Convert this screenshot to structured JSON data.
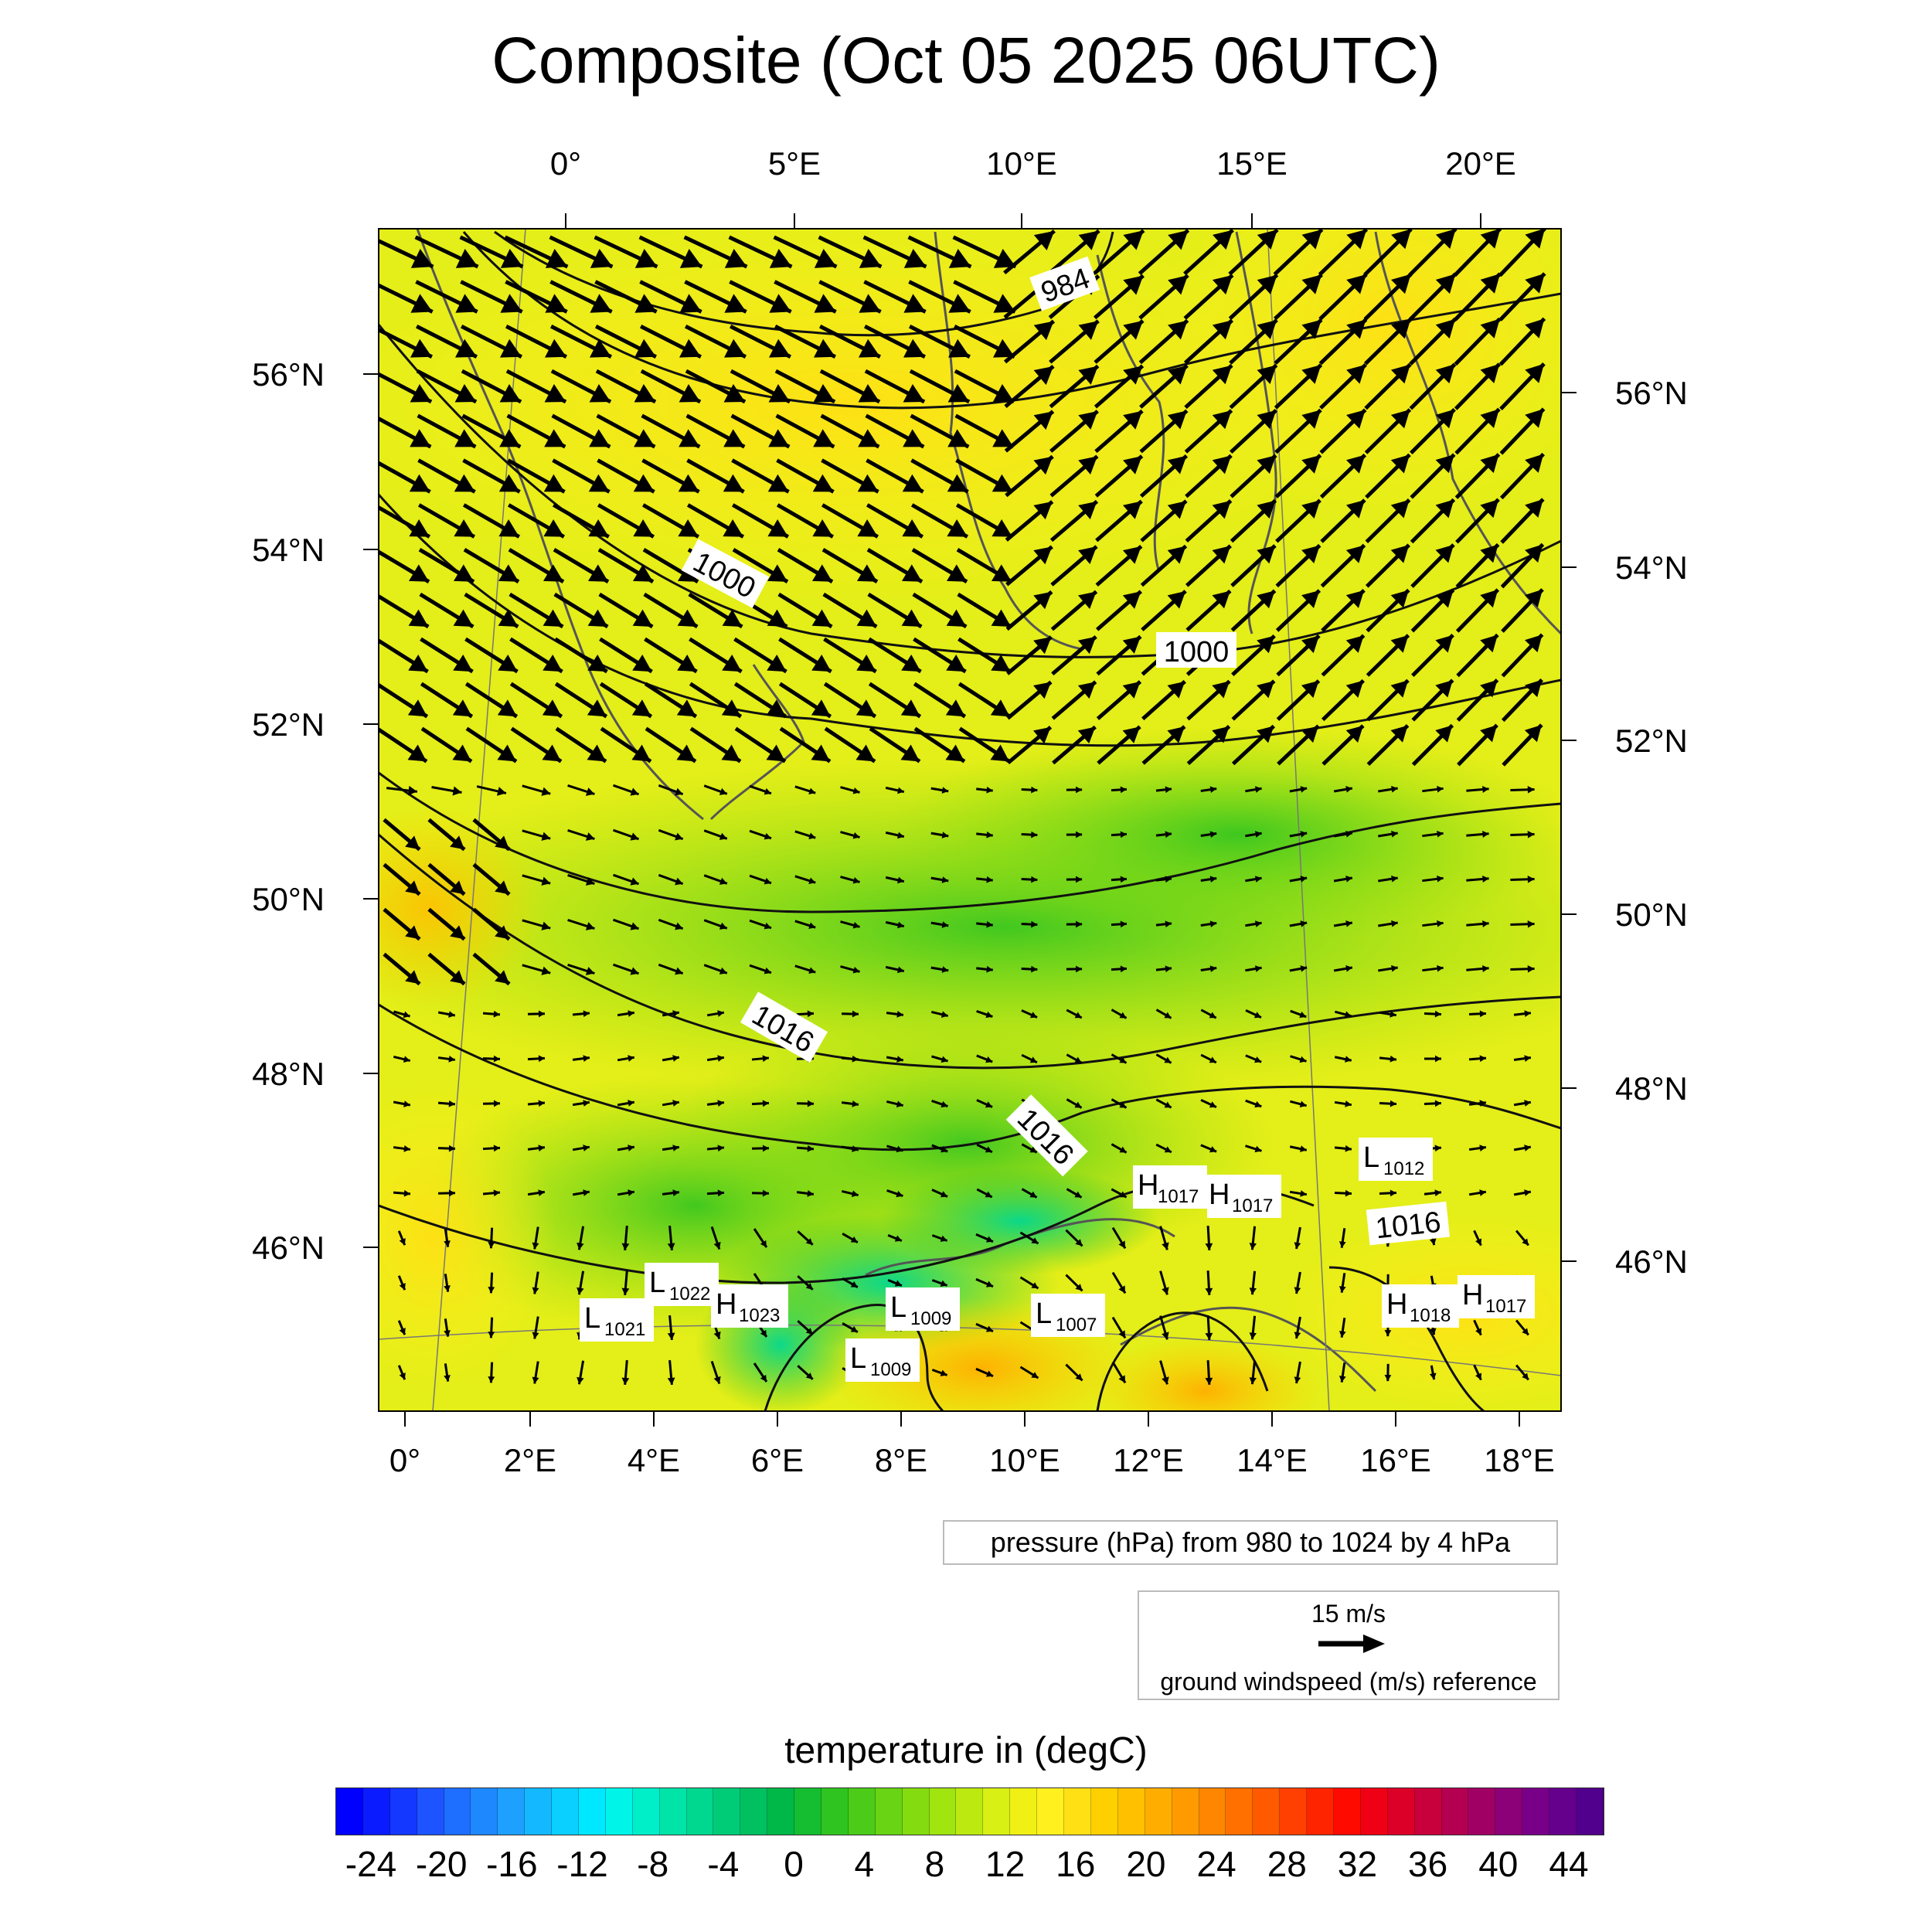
{
  "title": "Composite (Oct 05 2025 06UTC)",
  "top_lon_labels": [
    "0°",
    "5°E",
    "10°E",
    "15°E",
    "20°E"
  ],
  "bottom_lon_labels": [
    "0°",
    "2°E",
    "4°E",
    "6°E",
    "8°E",
    "10°E",
    "12°E",
    "14°E",
    "16°E",
    "18°E"
  ],
  "left_lat_labels": [
    "56°N",
    "54°N",
    "52°N",
    "50°N",
    "48°N",
    "46°N"
  ],
  "right_lat_labels": [
    "56°N",
    "54°N",
    "52°N",
    "50°N",
    "48°N",
    "46°N"
  ],
  "isobar_labels": [
    "984",
    "1000",
    "1000",
    "1016",
    "1016",
    "1016"
  ],
  "pressure_systems": [
    {
      "letter": "L",
      "value": "1012"
    },
    {
      "letter": "H",
      "value": "1017"
    },
    {
      "letter": "H",
      "value": "1017"
    },
    {
      "letter": "L",
      "value": "1022"
    },
    {
      "letter": "L",
      "value": "1021"
    },
    {
      "letter": "H",
      "value": "1023"
    },
    {
      "letter": "L",
      "value": "1009"
    },
    {
      "letter": "L",
      "value": "1009"
    },
    {
      "letter": "L",
      "value": "1007"
    },
    {
      "letter": "H",
      "value": "1018"
    },
    {
      "letter": "H",
      "value": "1017"
    }
  ],
  "pressure_legend": "pressure (hPa) from 980 to 1024 by 4 hPa",
  "wind_reference": {
    "speed": "15 m/s",
    "caption": "ground windspeed (m/s) reference"
  },
  "colorbar": {
    "title": "temperature in (degC)",
    "labels": [
      "-24",
      "-20",
      "-16",
      "-12",
      "-8",
      "-4",
      "0",
      "4",
      "8",
      "12",
      "16",
      "20",
      "24",
      "28",
      "32",
      "36",
      "40",
      "44"
    ],
    "colors": [
      "#0000ff",
      "#0a1cff",
      "#1438ff",
      "#1e54ff",
      "#1e6eff",
      "#1e88ff",
      "#1ea0ff",
      "#14b8ff",
      "#0ad0ff",
      "#00e8ff",
      "#00f5e8",
      "#00eec8",
      "#00e4a8",
      "#00d890",
      "#00cc78",
      "#00c060",
      "#00b848",
      "#14be30",
      "#30c420",
      "#4ccc18",
      "#68d414",
      "#84dc10",
      "#a0e410",
      "#bcea10",
      "#d8f014",
      "#f0f014",
      "#fff01e",
      "#ffe014",
      "#ffd000",
      "#ffc000",
      "#ffae00",
      "#ff9a00",
      "#ff8600",
      "#ff7000",
      "#ff5a00",
      "#ff4000",
      "#ff2400",
      "#ff0a00",
      "#f00014",
      "#dc0028",
      "#c8003c",
      "#b40050",
      "#a00064",
      "#8c0078",
      "#780088",
      "#64008c",
      "#50008c"
    ]
  },
  "chart_data": {
    "type": "weather map",
    "title": "Composite (Oct 05 2025 06UTC)",
    "variables": {
      "shading": "temperature in (degC)",
      "contours": "pressure (hPa) from 980 to 1024 by 4 hPa",
      "vectors": "ground windspeed (m/s)"
    },
    "contour_range_hpa": [
      980,
      1024
    ],
    "contour_interval_hpa": 4,
    "colorbar_range_degC": [
      -24,
      44
    ],
    "colorbar_step_degC": 4,
    "lat_range": [
      44.5,
      57.5
    ],
    "lon_range": [
      -0.5,
      18.7
    ],
    "wind_reference_ms": 15
  }
}
